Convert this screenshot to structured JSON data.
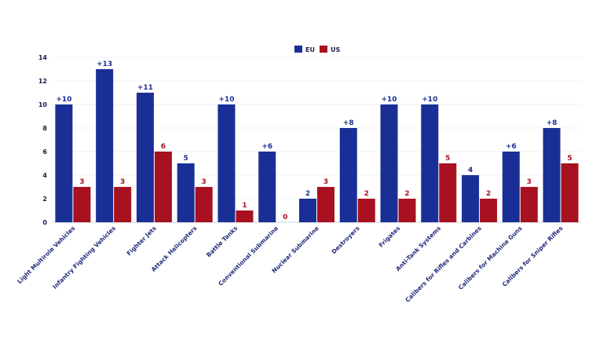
{
  "chart_data": {
    "type": "bar",
    "categories": [
      "Light Multirole Vehicles",
      "Infantry Fighting Vehicles",
      "Fighter Jets",
      "Attack Helicopters",
      "Battle Tanks",
      "Conventional Submarine",
      "Nuclear Submarine",
      "Destroyers",
      "Frigates",
      "Anti-Tank Systems",
      "Calibers for Rifles and Carbines",
      "Calibers for Machine Guns",
      "Calibers for Sniper Rifles"
    ],
    "series": [
      {
        "name": "EU",
        "color": "#1a2f96",
        "values": [
          10,
          13,
          11,
          5,
          10,
          6,
          2,
          8,
          10,
          10,
          4,
          6,
          8
        ],
        "labels": [
          "+10",
          "+13",
          "+11",
          "5",
          "+10",
          "+6",
          "2",
          "+8",
          "+10",
          "+10",
          "4",
          "+6",
          "+8"
        ]
      },
      {
        "name": "US",
        "color": "#a8111f",
        "values": [
          3,
          3,
          6,
          3,
          1,
          0,
          3,
          2,
          2,
          5,
          2,
          3,
          5
        ],
        "labels": [
          "3",
          "3",
          "6",
          "3",
          "1",
          "0",
          "3",
          "2",
          "2",
          "5",
          "2",
          "3",
          "5"
        ]
      }
    ],
    "yticks": [
      "0",
      "2",
      "4",
      "6",
      "8",
      "10",
      "12",
      "14"
    ],
    "ylim": [
      0,
      14
    ],
    "grid": true,
    "legend_position": "top-center"
  }
}
